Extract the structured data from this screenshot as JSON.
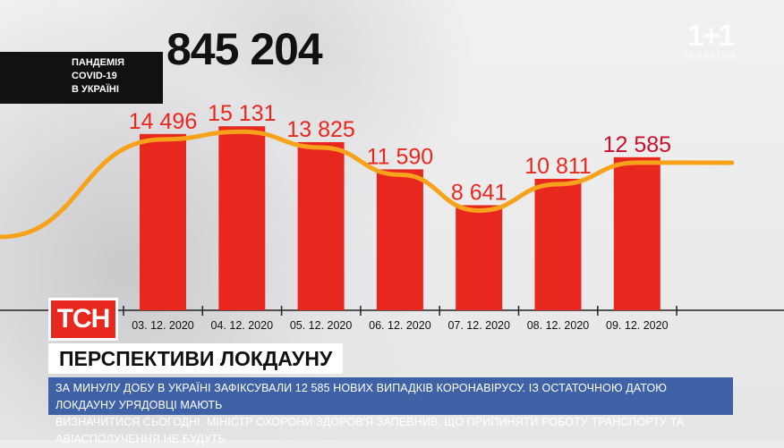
{
  "header": {
    "label_lines": [
      "ПАНДЕМІЯ",
      "COVID-19",
      "В УКРАЇНІ"
    ],
    "total": "845 204",
    "logo_main": "1+1",
    "logo_sub": "ТЕЛЕВІЗІЙ"
  },
  "chart_data": {
    "type": "bar",
    "categories": [
      "03. 12. 2020",
      "04. 12. 2020",
      "05. 12. 2020",
      "06. 12. 2020",
      "07. 12. 2020",
      "08. 12. 2020",
      "09. 12. 2020"
    ],
    "values": [
      14496,
      15131,
      13825,
      11590,
      8641,
      10811,
      12585
    ],
    "value_labels": [
      "14 496",
      "15 131",
      "13 825",
      "11 590",
      "8 641",
      "10 811",
      "12 585"
    ],
    "trend_line": true,
    "colors": {
      "bars": "#e8281e",
      "trend": "#f7a21b",
      "highlight_label": "#c8102e"
    }
  },
  "lower_third": {
    "channel": "ТСН",
    "headline": "ПЕРСПЕКТИВИ ЛОКДАУНУ",
    "ticker_lines": [
      "ЗА МИНУЛУ ДОБУ В УКРАЇНІ ЗАФІКСУВАЛИ 12 585 НОВИХ ВИПАДКІВ КОРОНАВІРУСУ. ІЗ ОСТАТОЧНОЮ ДАТОЮ ЛОКДАУНУ УРЯДОВЦІ МАЮТЬ",
      "ВИЗНАЧИТИСЯ СЬОГОДНІ. МІНІСТР ОХОРОНИ ЗДОРОВ'Я ЗАПЕВНИВ, ЩО ПРИПИНЯТИ РОБОТУ ТРАНСПОРТУ ТА АВІАСПОЛУЧЕННЯ НЕ БУДУТЬ"
    ]
  }
}
